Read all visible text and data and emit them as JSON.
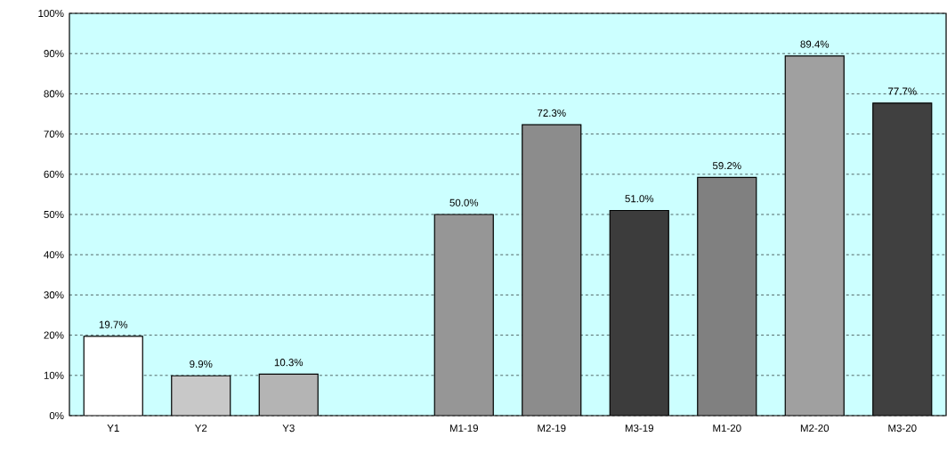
{
  "chart_data": {
    "type": "bar",
    "categories": [
      "Y1",
      "Y2",
      "Y3",
      null,
      "M1-19",
      "M2-19",
      "M3-19",
      "M1-20",
      "M2-20",
      "M3-20"
    ],
    "values": [
      19.7,
      9.9,
      10.3,
      null,
      50.0,
      72.3,
      51.0,
      59.2,
      89.4,
      77.7
    ],
    "value_labels": [
      "19.7%",
      "9.9%",
      "10.3%",
      null,
      "50.0%",
      "72.3%",
      "51.0%",
      "59.2%",
      "89.4%",
      "77.7%"
    ],
    "colors": [
      "#ffffff",
      "#c8c8c8",
      "#b4b4b4",
      "#ffffff",
      "#969696",
      "#8c8c8c",
      "#3c3c3c",
      "#808080",
      "#a0a0a0",
      "#404040"
    ],
    "ylim": [
      0,
      100
    ],
    "yticks": [
      {
        "value": 0,
        "label": "0%"
      },
      {
        "value": 10,
        "label": "10%"
      },
      {
        "value": 20,
        "label": "20%"
      },
      {
        "value": 30,
        "label": "30%"
      },
      {
        "value": 40,
        "label": "40%"
      },
      {
        "value": 50,
        "label": "50%"
      },
      {
        "value": 60,
        "label": "60%"
      },
      {
        "value": 70,
        "label": "70%"
      },
      {
        "value": 80,
        "label": "80%"
      },
      {
        "value": 90,
        "label": "90%"
      },
      {
        "value": 100,
        "label": "100%"
      }
    ],
    "grid": "y"
  }
}
